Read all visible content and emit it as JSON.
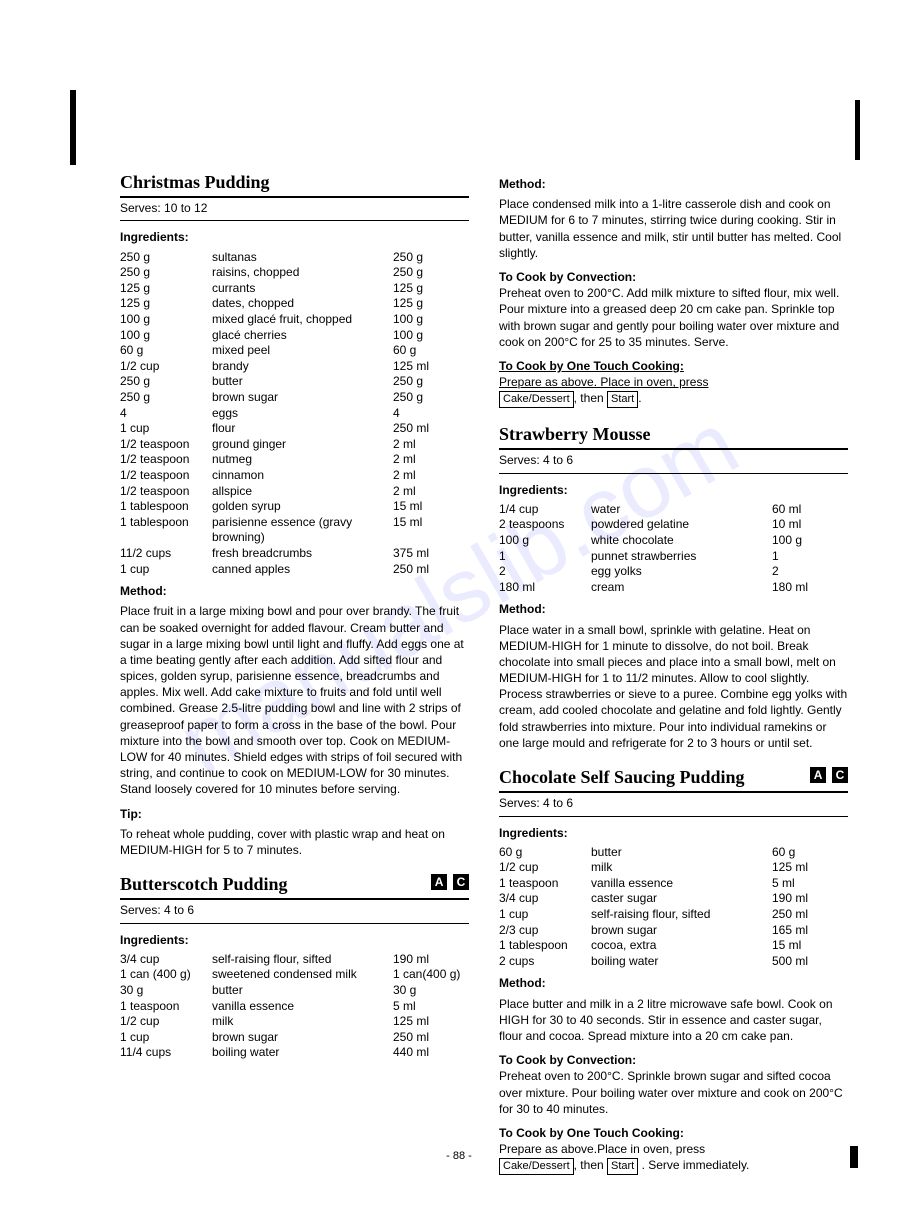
{
  "watermark": "manualslib.com",
  "page_number": "- 88 -",
  "left": {
    "r1": {
      "title": "Christmas Pudding",
      "serves": "Serves: 10 to 12",
      "ing_head": "Ingredients:",
      "rows": [
        {
          "a": "250 g",
          "b": "sultanas",
          "c": "250 g"
        },
        {
          "a": "250 g",
          "b": "raisins, chopped",
          "c": "250 g"
        },
        {
          "a": "125 g",
          "b": "currants",
          "c": "125 g"
        },
        {
          "a": "125 g",
          "b": "dates, chopped",
          "c": "125 g"
        },
        {
          "a": "100 g",
          "b": "mixed glacé fruit, chopped",
          "c": "100 g"
        },
        {
          "a": "100 g",
          "b": "glacé cherries",
          "c": "100 g"
        },
        {
          "a": "60 g",
          "b": "mixed peel",
          "c": "60 g"
        },
        {
          "a": "1/2 cup",
          "b": "brandy",
          "c": "125 ml"
        },
        {
          "a": "250 g",
          "b": "butter",
          "c": "250 g"
        },
        {
          "a": "250 g",
          "b": "brown sugar",
          "c": "250 g"
        },
        {
          "a": "4",
          "b": "eggs",
          "c": "4"
        },
        {
          "a": "1 cup",
          "b": "flour",
          "c": "250 ml"
        },
        {
          "a": "1/2 teaspoon",
          "b": "ground ginger",
          "c": "2 ml"
        },
        {
          "a": "1/2 teaspoon",
          "b": "nutmeg",
          "c": "2 ml"
        },
        {
          "a": "1/2 teaspoon",
          "b": "cinnamon",
          "c": "2 ml"
        },
        {
          "a": "1/2 teaspoon",
          "b": "allspice",
          "c": "2 ml"
        },
        {
          "a": "1 tablespoon",
          "b": "golden syrup",
          "c": "15 ml"
        },
        {
          "a": "1 tablespoon",
          "b": "parisienne essence (gravy browning)",
          "c": "15 ml"
        },
        {
          "a": "11/2 cups",
          "b": "fresh breadcrumbs",
          "c": "375 ml"
        },
        {
          "a": "1 cup",
          "b": "canned apples",
          "c": "250 ml"
        }
      ],
      "method_head": "Method:",
      "method": "Place fruit in a large mixing bowl and pour over brandy. The fruit can be soaked overnight for added flavour. Cream butter and sugar in a large mixing bowl until light and fluffy. Add eggs one at a time beating gently after each addition. Add sifted flour and spices, golden syrup, parisienne essence, breadcrumbs and apples. Mix well. Add cake mixture to fruits and fold until well combined. Grease 2.5-litre pudding bowl and line with 2 strips of greaseproof paper to form a cross in the base of the bowl. Pour mixture into the bowl and smooth over top. Cook on MEDIUM-LOW for 40 minutes. Shield edges with strips of foil secured with string, and continue to cook on MEDIUM-LOW for 30 minutes. Stand loosely covered for 10 minutes before serving.",
      "tip_head": "Tip:",
      "tip": "To reheat whole pudding, cover with plastic wrap and heat on MEDIUM-HIGH for 5 to 7 minutes."
    },
    "r2": {
      "title": "Butterscotch Pudding",
      "tag1": "A",
      "tag2": "C",
      "serves": "Serves: 4 to 6",
      "ing_head": "Ingredients:",
      "rows": [
        {
          "a": "3/4 cup",
          "b": "self-raising flour, sifted",
          "c": "190 ml"
        },
        {
          "a": "1 can (400 g)",
          "b": "sweetened condensed milk",
          "c": "1 can(400 g)"
        },
        {
          "a": "30 g",
          "b": "butter",
          "c": "30 g"
        },
        {
          "a": "1 teaspoon",
          "b": "vanilla essence",
          "c": "5 ml"
        },
        {
          "a": "1/2 cup",
          "b": "milk",
          "c": "125 ml"
        },
        {
          "a": "1 cup",
          "b": "brown sugar",
          "c": "250 ml"
        },
        {
          "a": "11/4 cups",
          "b": "boiling water",
          "c": "440 ml"
        }
      ]
    }
  },
  "right": {
    "r2m": {
      "method_head": "Method:",
      "method": "Place condensed milk into a 1-litre casserole dish and cook on MEDIUM for 6 to 7 minutes, stirring twice during cooking. Stir in butter, vanilla essence and milk, stir until butter has melted. Cool slightly.",
      "conv_head": "To Cook by Convection:",
      "conv": "Preheat oven to 200°C. Add milk mixture to sifted flour, mix well. Pour mixture into a greased deep 20 cm cake pan. Sprinkle top with brown sugar and gently pour boiling water over mixture and cook on 200°C for 25 to 35 minutes. Serve.",
      "otc_head": "To Cook by One Touch Cooking:",
      "otc_pre": "Prepare as above. Place in oven, press",
      "btn1": "Cake/Dessert",
      "then": ", then ",
      "btn2": "Start",
      "period": "."
    },
    "r3": {
      "title": "Strawberry Mousse",
      "serves": "Serves: 4 to 6",
      "ing_head": "Ingredients:",
      "rows": [
        {
          "a": "1/4 cup",
          "b": "water",
          "c": "60 ml"
        },
        {
          "a": "2 teaspoons",
          "b": "powdered gelatine",
          "c": "10 ml"
        },
        {
          "a": "100 g",
          "b": "white chocolate",
          "c": "100 g"
        },
        {
          "a": "1",
          "b": "punnet strawberries",
          "c": "1"
        },
        {
          "a": "2",
          "b": "egg yolks",
          "c": "2"
        },
        {
          "a": "180 ml",
          "b": "cream",
          "c": "180 ml"
        }
      ],
      "method_head": "Method:",
      "method": "Place water in a small bowl, sprinkle with gelatine. Heat on MEDIUM-HIGH for 1 minute to dissolve, do not boil. Break chocolate into small pieces and place into a small bowl, melt on MEDIUM-HIGH for 1 to 11/2 minutes. Allow to cool slightly. Process strawberries or sieve to a puree.\nCombine egg yolks with cream, add cooled chocolate and gelatine and fold lightly. Gently fold strawberries into mixture. Pour into individual ramekins or one large mould and refrigerate for 2 to 3 hours or until set."
    },
    "r4": {
      "title": "Chocolate Self Saucing Pudding",
      "tag1": "A",
      "tag2": "C",
      "serves": "Serves: 4 to 6",
      "ing_head": "Ingredients:",
      "rows": [
        {
          "a": "60 g",
          "b": "butter",
          "c": "60 g"
        },
        {
          "a": "1/2 cup",
          "b": "milk",
          "c": "125 ml"
        },
        {
          "a": "1 teaspoon",
          "b": "vanilla essence",
          "c": "5 ml"
        },
        {
          "a": "3/4 cup",
          "b": "caster sugar",
          "c": "190 ml"
        },
        {
          "a": "1 cup",
          "b": "self-raising flour, sifted",
          "c": "250 ml"
        },
        {
          "a": "2/3 cup",
          "b": "brown sugar",
          "c": "165 ml"
        },
        {
          "a": "1 tablespoon",
          "b": "cocoa, extra",
          "c": "15 ml"
        },
        {
          "a": "2 cups",
          "b": "boiling water",
          "c": "500 ml"
        }
      ],
      "method_head": "Method:",
      "method": "Place butter and milk in a 2 litre microwave safe bowl. Cook on HIGH for 30 to 40 seconds. Stir in essence and caster sugar, flour and cocoa. Spread mixture into a 20 cm cake pan.",
      "conv_head": "To Cook by Convection:",
      "conv": "Preheat oven to 200°C. Sprinkle brown sugar and sifted cocoa over mixture. Pour boiling water over mixture and cook on 200°C for 30 to 40 minutes.",
      "otc_head": "To Cook by One Touch Cooking:",
      "otc_pre": "Prepare as above.Place in oven, press",
      "btn1": "Cake/Dessert",
      "then": ", then ",
      "btn2": "Start",
      "tail": " . Serve immediately."
    }
  }
}
